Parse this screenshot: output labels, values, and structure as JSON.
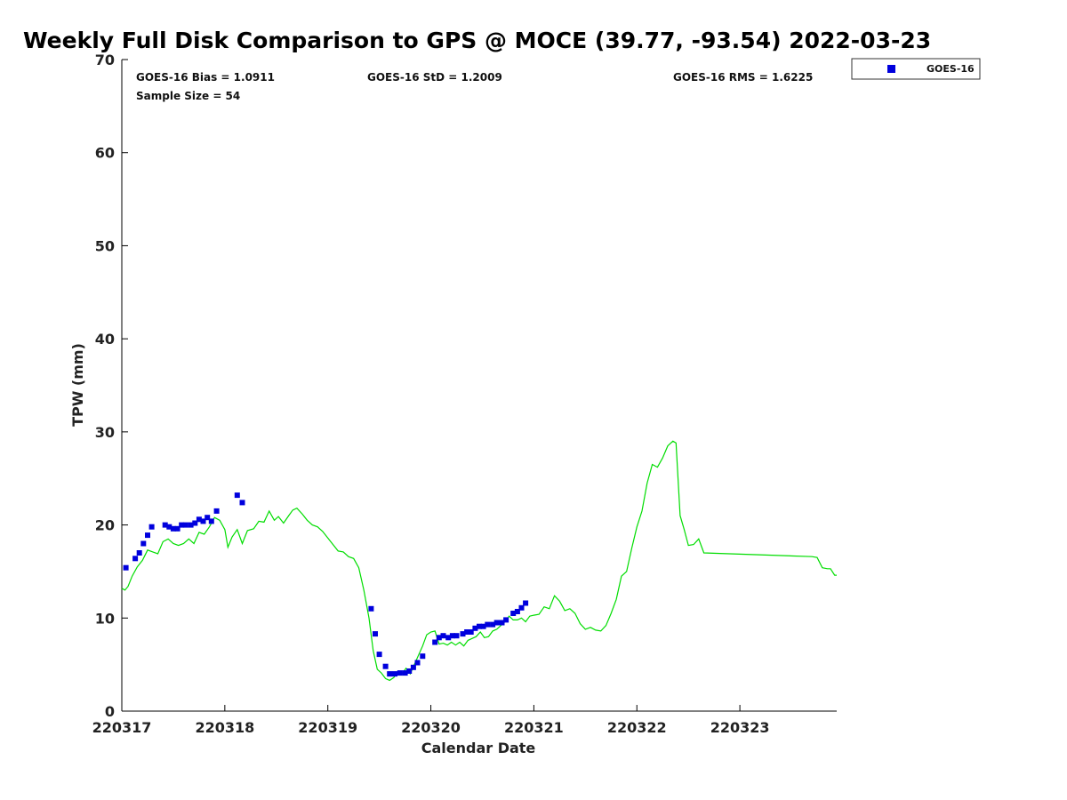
{
  "chart_data": {
    "type": "scatter",
    "title": "Weekly Full Disk Comparison to GPS @ MOCE (39.77, -93.54) 2022-03-23",
    "xlabel": "Calendar Date",
    "ylabel": "TPW (mm)",
    "xlim": [
      220317,
      220323.94
    ],
    "ylim": [
      0,
      70
    ],
    "xticks": [
      {
        "value": 220317,
        "label": "220317"
      },
      {
        "value": 220318,
        "label": "220318"
      },
      {
        "value": 220319,
        "label": "220319"
      },
      {
        "value": 220320,
        "label": "220320"
      },
      {
        "value": 220321,
        "label": "220321"
      },
      {
        "value": 220322,
        "label": "220322"
      },
      {
        "value": 220323,
        "label": "220323"
      }
    ],
    "yticks": [
      0,
      10,
      20,
      30,
      40,
      50,
      60,
      70
    ],
    "grid": false,
    "legend": {
      "placement": "outside-top-right",
      "entries": [
        "GOES-16"
      ]
    },
    "stats": {
      "bias": "GOES-16 Bias = 1.0911",
      "std": "GOES-16 StD = 1.2009",
      "rms": "GOES-16 RMS = 1.6225",
      "sample": "Sample Size = 54"
    },
    "series": [
      {
        "name": "GOES-16",
        "kind": "scatter",
        "marker": "square",
        "color": "#0000dd",
        "points": [
          [
            220317.04,
            15.4
          ],
          [
            220317.13,
            16.4
          ],
          [
            220317.17,
            17.0
          ],
          [
            220317.21,
            18.0
          ],
          [
            220317.25,
            18.9
          ],
          [
            220317.29,
            19.8
          ],
          [
            220317.42,
            20.0
          ],
          [
            220317.46,
            19.8
          ],
          [
            220317.5,
            19.6
          ],
          [
            220317.54,
            19.6
          ],
          [
            220317.58,
            20.0
          ],
          [
            220317.62,
            20.0
          ],
          [
            220317.67,
            20.0
          ],
          [
            220317.71,
            20.2
          ],
          [
            220317.75,
            20.6
          ],
          [
            220317.79,
            20.4
          ],
          [
            220317.83,
            20.8
          ],
          [
            220317.87,
            20.4
          ],
          [
            220317.92,
            21.5
          ],
          [
            220318.12,
            23.2
          ],
          [
            220318.17,
            22.4
          ],
          [
            220319.42,
            11.0
          ],
          [
            220319.46,
            8.3
          ],
          [
            220319.5,
            6.1
          ],
          [
            220319.56,
            4.8
          ],
          [
            220319.6,
            4.0
          ],
          [
            220319.65,
            4.0
          ],
          [
            220319.7,
            4.1
          ],
          [
            220319.75,
            4.1
          ],
          [
            220319.79,
            4.3
          ],
          [
            220319.83,
            4.7
          ],
          [
            220319.87,
            5.2
          ],
          [
            220319.92,
            5.9
          ],
          [
            220320.04,
            7.4
          ],
          [
            220320.08,
            7.9
          ],
          [
            220320.12,
            8.1
          ],
          [
            220320.17,
            7.9
          ],
          [
            220320.21,
            8.1
          ],
          [
            220320.25,
            8.1
          ],
          [
            220320.31,
            8.3
          ],
          [
            220320.35,
            8.5
          ],
          [
            220320.39,
            8.5
          ],
          [
            220320.43,
            8.9
          ],
          [
            220320.47,
            9.1
          ],
          [
            220320.51,
            9.1
          ],
          [
            220320.55,
            9.3
          ],
          [
            220320.6,
            9.3
          ],
          [
            220320.64,
            9.5
          ],
          [
            220320.69,
            9.5
          ],
          [
            220320.73,
            9.8
          ],
          [
            220320.8,
            10.5
          ],
          [
            220320.84,
            10.7
          ],
          [
            220320.88,
            11.1
          ],
          [
            220320.92,
            11.6
          ]
        ]
      },
      {
        "name": "",
        "kind": "line",
        "color": "#00dd00",
        "points": [
          [
            220317.0,
            13.2
          ],
          [
            220317.03,
            13.0
          ],
          [
            220317.06,
            13.4
          ],
          [
            220317.1,
            14.5
          ],
          [
            220317.15,
            15.5
          ],
          [
            220317.2,
            16.2
          ],
          [
            220317.25,
            17.3
          ],
          [
            220317.3,
            17.1
          ],
          [
            220317.35,
            16.9
          ],
          [
            220317.4,
            18.2
          ],
          [
            220317.45,
            18.5
          ],
          [
            220317.5,
            18.0
          ],
          [
            220317.55,
            17.8
          ],
          [
            220317.6,
            18.0
          ],
          [
            220317.65,
            18.5
          ],
          [
            220317.7,
            18.0
          ],
          [
            220317.75,
            19.2
          ],
          [
            220317.8,
            19.0
          ],
          [
            220317.85,
            19.8
          ],
          [
            220317.9,
            20.8
          ],
          [
            220317.95,
            20.5
          ],
          [
            220318.0,
            19.5
          ],
          [
            220318.03,
            17.6
          ],
          [
            220318.07,
            18.7
          ],
          [
            220318.12,
            19.5
          ],
          [
            220318.17,
            18.0
          ],
          [
            220318.22,
            19.4
          ],
          [
            220318.28,
            19.6
          ],
          [
            220318.33,
            20.4
          ],
          [
            220318.38,
            20.3
          ],
          [
            220318.43,
            21.5
          ],
          [
            220318.48,
            20.5
          ],
          [
            220318.52,
            20.9
          ],
          [
            220318.57,
            20.2
          ],
          [
            220318.62,
            21.0
          ],
          [
            220318.66,
            21.6
          ],
          [
            220318.7,
            21.8
          ],
          [
            220318.75,
            21.2
          ],
          [
            220318.8,
            20.5
          ],
          [
            220318.85,
            20.0
          ],
          [
            220318.9,
            19.8
          ],
          [
            220318.95,
            19.3
          ],
          [
            220319.0,
            18.6
          ],
          [
            220319.05,
            17.9
          ],
          [
            220319.1,
            17.2
          ],
          [
            220319.15,
            17.1
          ],
          [
            220319.2,
            16.6
          ],
          [
            220319.25,
            16.4
          ],
          [
            220319.3,
            15.4
          ],
          [
            220319.35,
            13.0
          ],
          [
            220319.4,
            10.0
          ],
          [
            220319.44,
            6.5
          ],
          [
            220319.48,
            4.5
          ],
          [
            220319.52,
            4.1
          ],
          [
            220319.56,
            3.5
          ],
          [
            220319.6,
            3.3
          ],
          [
            220319.64,
            3.6
          ],
          [
            220319.68,
            4.2
          ],
          [
            220319.72,
            4.0
          ],
          [
            220319.76,
            4.6
          ],
          [
            220319.8,
            4.0
          ],
          [
            220319.84,
            5.0
          ],
          [
            220319.88,
            6.0
          ],
          [
            220319.92,
            7.0
          ],
          [
            220319.96,
            8.2
          ],
          [
            220320.0,
            8.5
          ],
          [
            220320.04,
            8.6
          ],
          [
            220320.08,
            7.2
          ],
          [
            220320.12,
            7.3
          ],
          [
            220320.16,
            7.1
          ],
          [
            220320.2,
            7.4
          ],
          [
            220320.24,
            7.1
          ],
          [
            220320.28,
            7.4
          ],
          [
            220320.32,
            7.0
          ],
          [
            220320.36,
            7.6
          ],
          [
            220320.4,
            7.8
          ],
          [
            220320.44,
            8.0
          ],
          [
            220320.48,
            8.5
          ],
          [
            220320.52,
            7.9
          ],
          [
            220320.56,
            8.0
          ],
          [
            220320.6,
            8.6
          ],
          [
            220320.64,
            8.8
          ],
          [
            220320.68,
            9.2
          ],
          [
            220320.72,
            9.6
          ],
          [
            220320.76,
            10.2
          ],
          [
            220320.8,
            9.8
          ],
          [
            220320.84,
            9.8
          ],
          [
            220320.88,
            10.0
          ],
          [
            220320.92,
            9.6
          ],
          [
            220320.96,
            10.2
          ],
          [
            220321.0,
            10.3
          ],
          [
            220321.05,
            10.4
          ],
          [
            220321.1,
            11.2
          ],
          [
            220321.15,
            11.0
          ],
          [
            220321.2,
            12.4
          ],
          [
            220321.25,
            11.8
          ],
          [
            220321.3,
            10.8
          ],
          [
            220321.35,
            11.0
          ],
          [
            220321.4,
            10.5
          ],
          [
            220321.45,
            9.4
          ],
          [
            220321.5,
            8.8
          ],
          [
            220321.55,
            9.0
          ],
          [
            220321.6,
            8.7
          ],
          [
            220321.65,
            8.6
          ],
          [
            220321.7,
            9.2
          ],
          [
            220321.75,
            10.5
          ],
          [
            220321.8,
            12.0
          ],
          [
            220321.85,
            14.5
          ],
          [
            220321.9,
            15.0
          ],
          [
            220321.95,
            17.5
          ],
          [
            220322.0,
            19.8
          ],
          [
            220322.05,
            21.5
          ],
          [
            220322.1,
            24.5
          ],
          [
            220322.15,
            26.5
          ],
          [
            220322.2,
            26.2
          ],
          [
            220322.25,
            27.2
          ],
          [
            220322.3,
            28.5
          ],
          [
            220322.35,
            29.0
          ],
          [
            220322.38,
            28.8
          ],
          [
            220322.42,
            21.0
          ],
          [
            220322.46,
            19.5
          ],
          [
            220322.5,
            17.8
          ],
          [
            220322.55,
            17.9
          ],
          [
            220322.6,
            18.5
          ],
          [
            220322.65,
            17.0
          ],
          [
            220323.7,
            16.6
          ],
          [
            220323.75,
            16.5
          ],
          [
            220323.8,
            15.4
          ],
          [
            220323.85,
            15.3
          ],
          [
            220323.88,
            15.3
          ],
          [
            220323.92,
            14.6
          ],
          [
            220323.94,
            14.6
          ]
        ]
      }
    ]
  }
}
